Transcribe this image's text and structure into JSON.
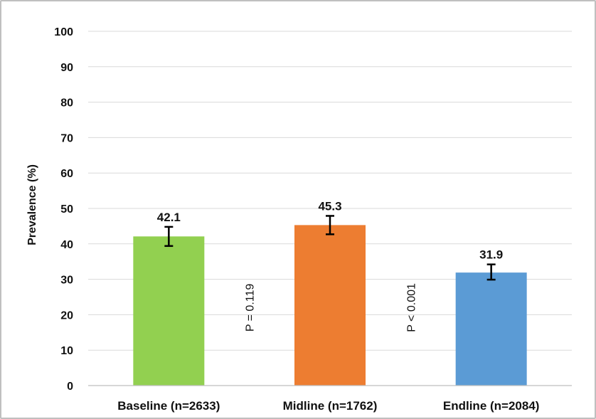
{
  "chart_data": {
    "type": "bar",
    "title": "",
    "xlabel": "",
    "ylabel": "Prevalence (%)",
    "ylim": [
      0,
      100
    ],
    "yticks": [
      0,
      10,
      20,
      30,
      40,
      50,
      60,
      70,
      80,
      90,
      100
    ],
    "grid": true,
    "categories": [
      "Baseline (n=2633)",
      "Midline (n=1762)",
      "Endline (n=2084)"
    ],
    "values": [
      42.1,
      45.3,
      31.9
    ],
    "value_labels": [
      "42.1",
      "45.3",
      "31.9"
    ],
    "error_low": [
      39.4,
      42.7,
      29.9
    ],
    "error_high": [
      44.8,
      47.9,
      34.2
    ],
    "colors": [
      "#92d050",
      "#ed7d31",
      "#5b9bd5"
    ],
    "annotations": [
      {
        "text": "P = 0.119",
        "between": [
          0,
          1
        ],
        "y": 22
      },
      {
        "text": "P < 0.001",
        "between": [
          1,
          2
        ],
        "y": 22
      }
    ]
  }
}
